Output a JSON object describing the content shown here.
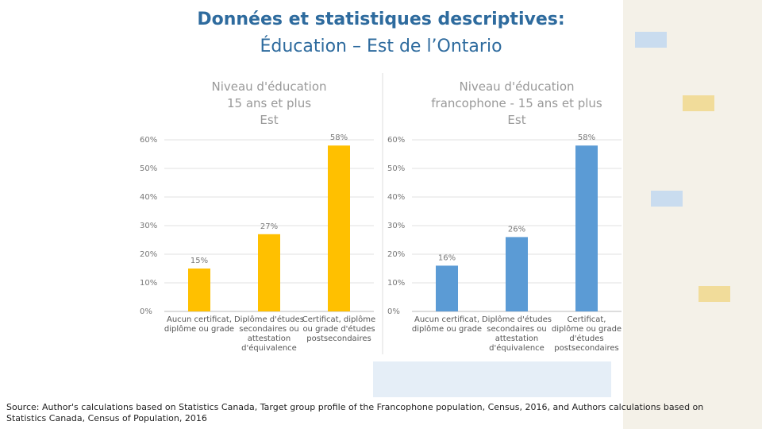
{
  "slide_title": "Données et statistiques descriptives:",
  "slide_subtitle": "Éducation – Est de l’Ontario",
  "source": "Source: Author's calculations based on Statistics Canada, Target group profile of the Francophone population, Census, 2016, and Authors calculations based on Statistics Canada, Census of Population, 2016",
  "chart_data": [
    {
      "type": "bar",
      "title": "Niveau d'éducation\n15 ans et plus\nEst",
      "categories": [
        "Aucun certificat,\ndiplôme ou grade",
        "Diplôme d'études\nsecondaires ou\nattestation\nd'équivalence",
        "Certificat, diplôme\nou grade d'études\npostsecondaires"
      ],
      "values": [
        15,
        27,
        58
      ],
      "value_labels": [
        "15%",
        "27%",
        "58%"
      ],
      "color": "#ffc000",
      "ylim": [
        0,
        60
      ],
      "yticks": [
        {
          "value": 0,
          "label": "0%"
        },
        {
          "value": 10,
          "label": "10%"
        },
        {
          "value": 20,
          "label": "20%"
        },
        {
          "value": 30,
          "label": "30%"
        },
        {
          "value": 40,
          "label": "40%"
        },
        {
          "value": 50,
          "label": "50%"
        },
        {
          "value": 60,
          "label": "60%"
        }
      ],
      "grid": true
    },
    {
      "type": "bar",
      "title": "Niveau d'éducation\nfrancophone - 15 ans et plus\nEst",
      "categories": [
        "Aucun certificat,\ndiplôme ou grade",
        "Diplôme d'études\nsecondaires ou\nattestation\nd'équivalence",
        "Certificat,\ndiplôme ou grade\nd'études\npostsecondaires"
      ],
      "values": [
        16,
        26,
        58
      ],
      "value_labels": [
        "16%",
        "26%",
        "58%"
      ],
      "color": "#5b9bd5",
      "ylim": [
        0,
        60
      ],
      "yticks": [
        {
          "value": 0,
          "label": "0%"
        },
        {
          "value": 10,
          "label": "10%"
        },
        {
          "value": 20,
          "label": "20%"
        },
        {
          "value": 30,
          "label": "30%"
        },
        {
          "value": 40,
          "label": "40%"
        },
        {
          "value": 50,
          "label": "50%"
        },
        {
          "value": 60,
          "label": "60%"
        }
      ],
      "grid": true
    }
  ]
}
